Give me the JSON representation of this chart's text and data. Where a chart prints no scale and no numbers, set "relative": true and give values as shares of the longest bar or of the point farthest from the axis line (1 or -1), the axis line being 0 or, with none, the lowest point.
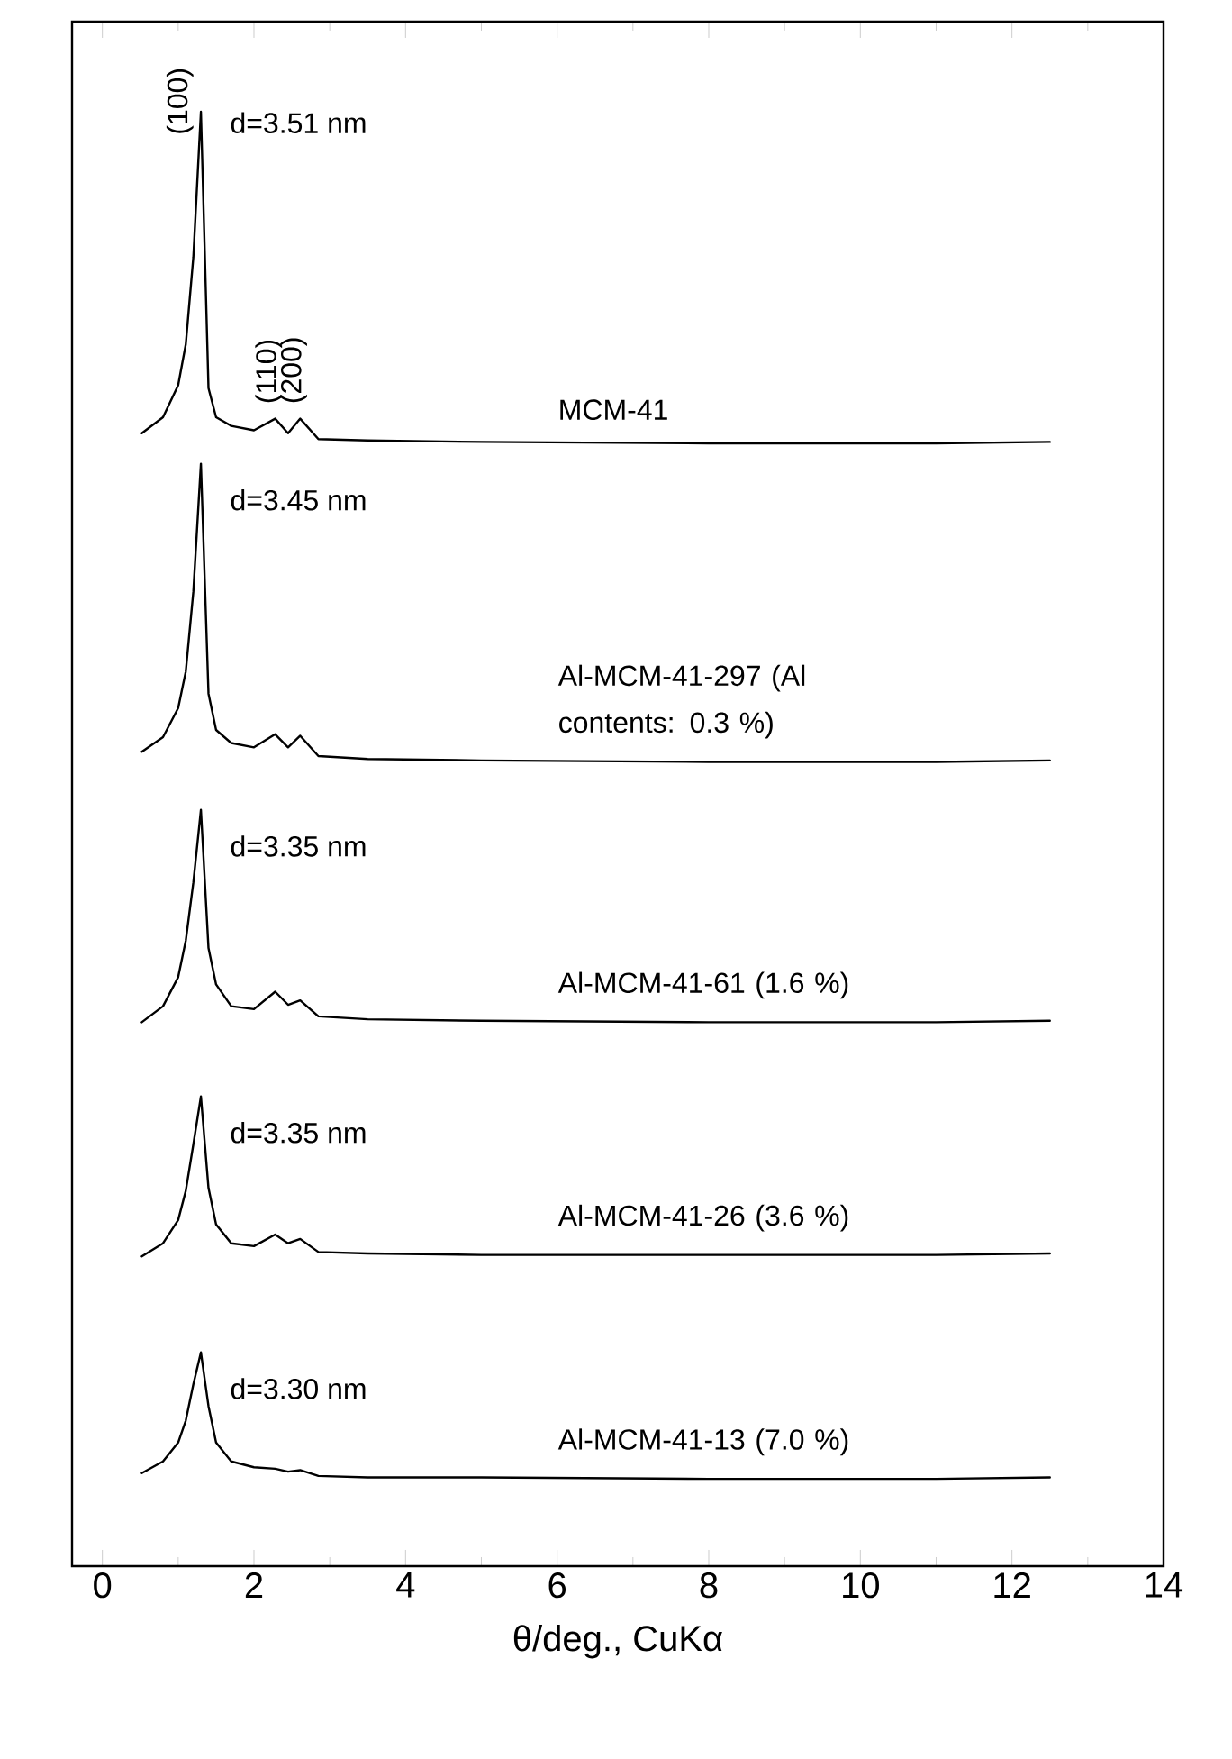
{
  "chart_data": {
    "type": "line",
    "xlabel": "θ/deg., CuKα",
    "relative": true,
    "xlim": [
      -0.4,
      14
    ],
    "xticks": [
      0,
      2,
      4,
      6,
      8,
      10,
      12,
      14
    ],
    "x": [
      0.52,
      0.8,
      1.0,
      1.1,
      1.2,
      1.3,
      1.4,
      1.5,
      1.7,
      2.0,
      2.28,
      2.45,
      2.61,
      2.85,
      3.5,
      5,
      8,
      11,
      12.5
    ],
    "series": [
      {
        "name": "MCM-41",
        "color": "#000000",
        "values": [
          0.779,
          0.79,
          0.812,
          0.84,
          0.9,
          1.0,
          0.81,
          0.79,
          0.784,
          0.781,
          0.789,
          0.779,
          0.789,
          0.775,
          0.774,
          0.773,
          0.772,
          0.772,
          0.773
        ]
      },
      {
        "name": "Al-MCM-41-297 (Al contents: 0.3 %)",
        "color": "#000000",
        "values": [
          0.56,
          0.57,
          0.59,
          0.615,
          0.67,
          0.758,
          0.6,
          0.575,
          0.566,
          0.563,
          0.572,
          0.563,
          0.571,
          0.557,
          0.555,
          0.554,
          0.553,
          0.553,
          0.554
        ]
      },
      {
        "name": "Al-MCM-41-61 (1.6 %)",
        "color": "#000000",
        "values": [
          0.374,
          0.385,
          0.405,
          0.43,
          0.47,
          0.52,
          0.425,
          0.4,
          0.385,
          0.383,
          0.395,
          0.386,
          0.389,
          0.378,
          0.376,
          0.375,
          0.374,
          0.374,
          0.375
        ]
      },
      {
        "name": "Al-MCM-41-26 (3.6 %)",
        "color": "#000000",
        "values": [
          0.213,
          0.222,
          0.238,
          0.258,
          0.29,
          0.323,
          0.26,
          0.235,
          0.222,
          0.22,
          0.228,
          0.222,
          0.225,
          0.216,
          0.215,
          0.214,
          0.214,
          0.214,
          0.215
        ]
      },
      {
        "name": "Al-MCM-41-13 (7.0 %)",
        "color": "#000000",
        "values": [
          0.064,
          0.072,
          0.085,
          0.1,
          0.125,
          0.147,
          0.11,
          0.085,
          0.072,
          0.068,
          0.067,
          0.065,
          0.066,
          0.062,
          0.061,
          0.061,
          0.06,
          0.06,
          0.061
        ]
      }
    ],
    "annotations": [
      {
        "text": "(100)",
        "x": 1.3,
        "y": 1.0
      },
      {
        "text": "(110)",
        "x": 2.28,
        "y": 0.789
      },
      {
        "text": "(200)",
        "x": 2.61,
        "y": 0.789
      },
      {
        "text": "d=3.51 nm",
        "x": 1.3,
        "y": 1.0
      },
      {
        "text": "d=3.45 nm",
        "x": 1.3,
        "y": 0.758
      },
      {
        "text": "d=3.35 nm",
        "x": 1.3,
        "y": 0.52
      },
      {
        "text": "d=3.35 nm",
        "x": 1.3,
        "y": 0.323
      },
      {
        "text": "d=3.30 nm",
        "x": 1.3,
        "y": 0.147
      }
    ]
  }
}
